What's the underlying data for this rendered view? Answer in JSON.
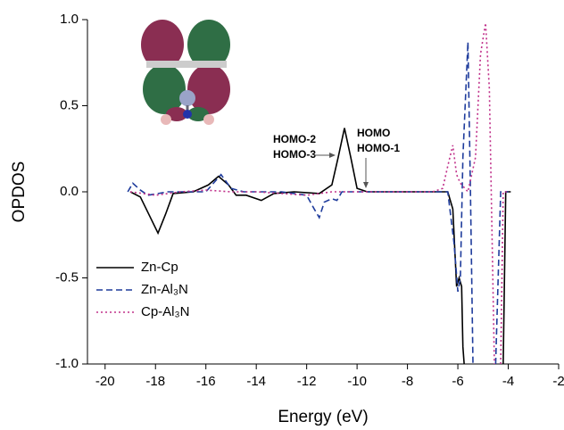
{
  "chart_data": {
    "type": "line",
    "xlabel": "Energy (eV)",
    "ylabel": "OPDOS",
    "xlim": [
      -20.7,
      -2
    ],
    "ylim": [
      -1,
      1
    ],
    "xticks": [
      -20,
      -18,
      -16,
      -14,
      -12,
      -10,
      -8,
      -6,
      -4,
      -2
    ],
    "yticks": [
      {
        "value": -1,
        "label": "-1.0"
      },
      -0.5,
      {
        "value": 0,
        "label": "0.0"
      },
      0.5,
      {
        "value": 1,
        "label": "1.0"
      }
    ],
    "legend": "lower left",
    "annotations": [
      "HOMO-2",
      "HOMO-3",
      "HOMO",
      "HOMO-1"
    ],
    "series": [
      {
        "name": "Zn-Cp",
        "color": "#000000",
        "dash": "solid",
        "x": [
          -19,
          -18.6,
          -18.2,
          -17.9,
          -17.6,
          -17.3,
          -16.5,
          -15.9,
          -15.5,
          -15.1,
          -14.8,
          -14.4,
          -13.8,
          -13.3,
          -12.5,
          -11.5,
          -11,
          -10.75,
          -10.5,
          -10.25,
          -10,
          -9.6,
          -7,
          -6.4,
          -6.2,
          -6.05,
          -5.95,
          -5.85,
          -5.8,
          -5.75,
          -5,
          -4.2,
          -4.1,
          -3.9
        ],
        "values": [
          0,
          -0.03,
          -0.15,
          -0.24,
          -0.13,
          -0.01,
          0,
          0.04,
          0.09,
          0.04,
          -0.02,
          -0.02,
          -0.05,
          -0.01,
          0,
          -0.01,
          0.04,
          0.2,
          0.37,
          0.2,
          0.02,
          0,
          0,
          0,
          -0.1,
          -0.55,
          -0.5,
          -0.55,
          -0.9,
          -1,
          null,
          -1,
          0,
          0
        ]
      },
      {
        "name": "Zn-Al₃N",
        "color": "#1f3c9c",
        "dash": "dashed",
        "x": [
          -19.1,
          -18.9,
          -18.6,
          -18.3,
          -17.5,
          -16,
          -15.4,
          -15,
          -14.5,
          -13,
          -12,
          -11.7,
          -11.5,
          -11.3,
          -11,
          -10.8,
          -10.6,
          -7,
          -6.4,
          -6.15,
          -6,
          -5.9,
          -5.8,
          -5.6,
          -5.5,
          -5.4,
          -5,
          -4.5,
          -4.3,
          -4
        ],
        "values": [
          0,
          0.05,
          0.01,
          -0.02,
          0,
          0,
          0.1,
          0.02,
          0,
          0,
          -0.02,
          -0.1,
          -0.15,
          -0.06,
          -0.04,
          -0.05,
          0,
          0,
          0,
          -0.3,
          -0.58,
          -0.5,
          0.2,
          0.87,
          0,
          -1,
          null,
          -1,
          0,
          0
        ]
      },
      {
        "name": "Cp-Al₃N",
        "color": "#c0308a",
        "dash": "dotted",
        "x": [
          -19,
          -18,
          -17,
          -16,
          -15,
          -14,
          -12,
          -11,
          -10,
          -7,
          -6.6,
          -6.4,
          -6.2,
          -6.05,
          -5.9,
          -5.6,
          -5.3,
          -5.1,
          -4.9,
          -4.75,
          -4.6,
          -4.55,
          -4.4,
          -4.3,
          -4.2,
          -4
        ],
        "values": [
          0,
          -0.02,
          0,
          0.01,
          0,
          0,
          -0.02,
          0,
          0,
          0,
          0.02,
          0.15,
          0.27,
          0.1,
          0.05,
          0,
          0.2,
          0.8,
          0.98,
          0.6,
          -0.6,
          -1,
          null,
          -1,
          0,
          0
        ]
      }
    ]
  }
}
